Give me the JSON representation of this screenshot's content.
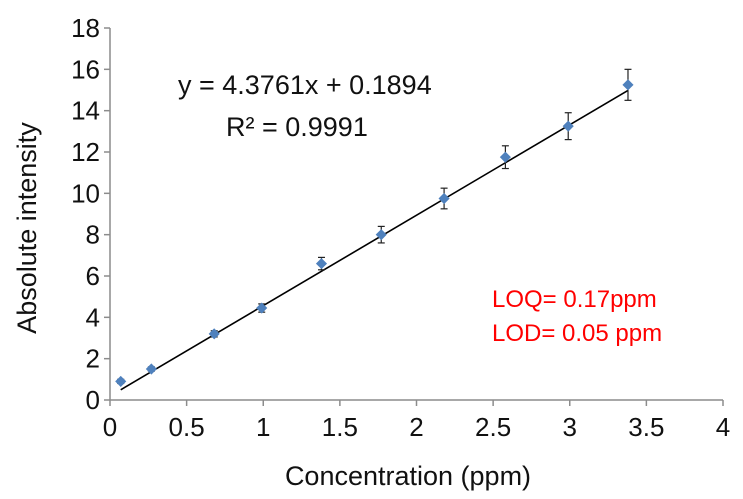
{
  "chart_data": {
    "type": "scatter",
    "title": "",
    "xlabel": "Concentration (ppm)",
    "ylabel": "Absolute intensity",
    "xlim": [
      0,
      4
    ],
    "ylim": [
      0,
      18
    ],
    "xticks": [
      "0",
      "0.5",
      "1",
      "1.5",
      "2",
      "2.5",
      "3",
      "3.5",
      "4"
    ],
    "yticks": [
      "0",
      "2",
      "4",
      "6",
      "8",
      "10",
      "12",
      "14",
      "16",
      "18"
    ],
    "grid": false,
    "legend": "none",
    "marker": "diamond",
    "marker_color": "#4f81bd",
    "points": [
      {
        "x": 0.07,
        "y": 0.9,
        "err": 0.1
      },
      {
        "x": 0.27,
        "y": 1.5,
        "err": 0.1
      },
      {
        "x": 0.68,
        "y": 3.2,
        "err": 0.15
      },
      {
        "x": 0.99,
        "y": 4.45,
        "err": 0.2
      },
      {
        "x": 1.38,
        "y": 6.6,
        "err": 0.3
      },
      {
        "x": 1.77,
        "y": 8.0,
        "err": 0.4
      },
      {
        "x": 2.18,
        "y": 9.75,
        "err": 0.5
      },
      {
        "x": 2.58,
        "y": 11.75,
        "err": 0.55
      },
      {
        "x": 2.99,
        "y": 13.25,
        "err": 0.65
      },
      {
        "x": 3.38,
        "y": 15.25,
        "err": 0.75
      }
    ],
    "trendline": {
      "slope": 4.3761,
      "intercept": 0.1894,
      "x_range": [
        0.07,
        3.38
      ],
      "color": "#000000",
      "equation": "y = 4.3761x + 0.1894",
      "r2_label": "R² = 0.9991"
    },
    "annotations": [
      {
        "text": "LOQ= 0.17ppm",
        "color": "#ff0000"
      },
      {
        "text": "LOD= 0.05 ppm",
        "color": "#ff0000"
      }
    ]
  }
}
